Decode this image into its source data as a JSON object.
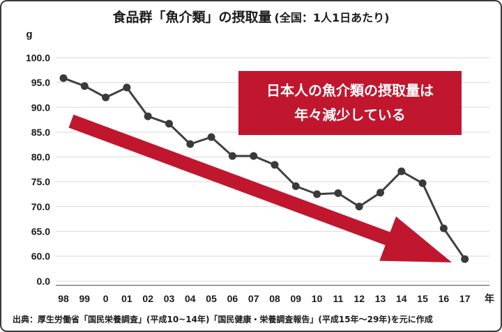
{
  "title": {
    "main": "食品群「魚介類」の摂取量",
    "sub": "(全国：1人1日あたり)"
  },
  "source": "出典：厚生労働省「国民栄養調査」(平成10~14年)「国民健康・栄養調査報告」(平成15年～29年)を元に作成",
  "callout": {
    "line1": "日本人の魚介類の摂取量は",
    "line2": "年々減少している"
  },
  "colors": {
    "line": "#404040",
    "marker": "#3a3a3a",
    "arrow": "#c0172e",
    "callout_bg": "#c0172e",
    "grid": "#d9d9d9"
  },
  "chart_data": {
    "type": "line",
    "title": "食品群「魚介類」の摂取量 (全国：1人1日あたり)",
    "xlabel": "年",
    "ylabel": "g",
    "categories": [
      "98",
      "99",
      "0",
      "01",
      "02",
      "03",
      "04",
      "05",
      "06",
      "07",
      "08",
      "09",
      "10",
      "11",
      "12",
      "13",
      "14",
      "15",
      "16",
      "17"
    ],
    "yticks": [
      "0.0",
      "60.0",
      "65.0",
      "70.0",
      "75.0",
      "80.0",
      "85.0",
      "90.0",
      "95.0",
      "100.0"
    ],
    "ylim": [
      55,
      100
    ],
    "axis_break": true,
    "grid": true,
    "legend": "none",
    "series": [
      {
        "values": [
          95.9,
          94.3,
          92.0,
          94.0,
          88.2,
          86.7,
          82.6,
          84.0,
          80.2,
          80.2,
          78.4,
          74.1,
          72.5,
          72.7,
          70.0,
          72.8,
          77.1,
          74.7,
          65.6,
          59.4
        ]
      }
    ]
  }
}
